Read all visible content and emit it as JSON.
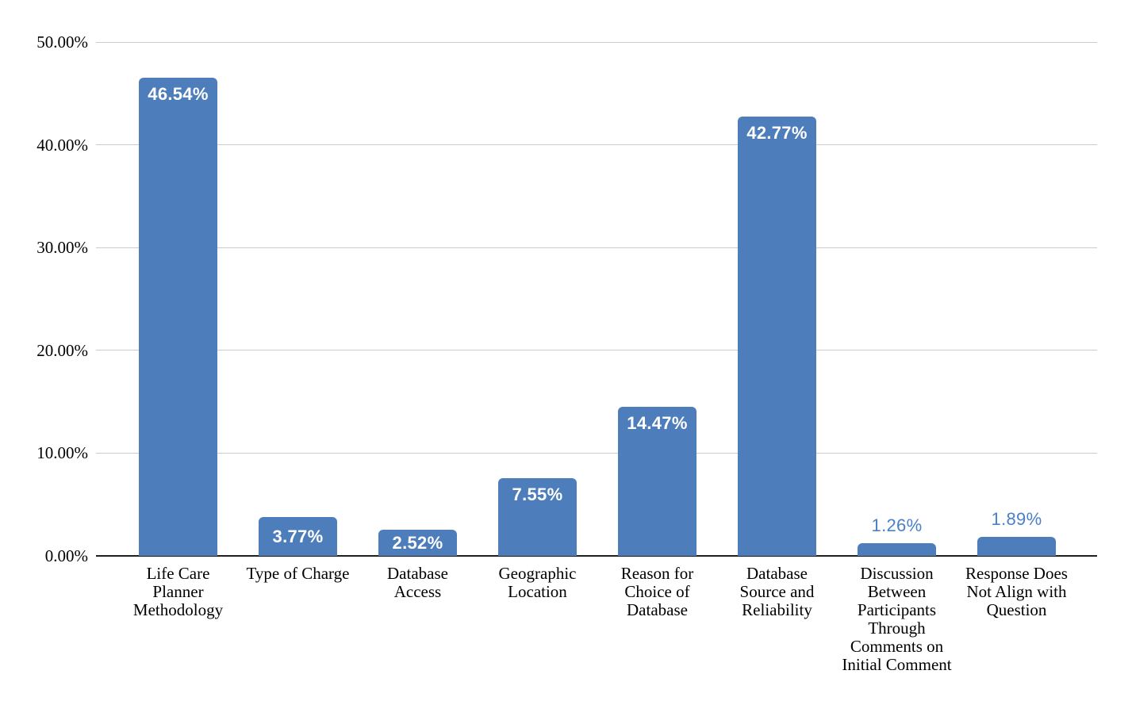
{
  "chart_data": {
    "type": "bar",
    "title": "",
    "xlabel": "",
    "ylabel": "",
    "categories": [
      "Life Care\nPlanner\nMethodology",
      "Type of Charge",
      "Database\nAccess",
      "Geographic\nLocation",
      "Reason for\nChoice of\nDatabase",
      "Database\nSource and\nReliability",
      "Discussion\nBetween\nParticipants\nThrough\nComments on\nInitial Comment",
      "Response Does\nNot Align with\nQuestion"
    ],
    "values": [
      46.54,
      3.77,
      2.52,
      7.55,
      14.47,
      42.77,
      1.26,
      1.89
    ],
    "value_labels": [
      "46.54%",
      "3.77%",
      "2.52%",
      "7.55%",
      "14.47%",
      "42.77%",
      "1.26%",
      "1.89%"
    ],
    "label_placement": [
      "inside",
      "inside",
      "inside",
      "inside",
      "inside",
      "inside",
      "outside",
      "outside"
    ],
    "ylim": [
      0,
      50
    ],
    "yticks": [
      "0.00%",
      "10.00%",
      "20.00%",
      "30.00%",
      "40.00%",
      "50.00%"
    ],
    "grid": true,
    "legend": "none",
    "colors": {
      "bar": "#4d7ebb",
      "inside_label": "#ffffff",
      "outside_label": "#4a80c6",
      "gridline": "#cccccc",
      "axis_line": "#1f1f1f",
      "tick_text": "#000000",
      "background": "#ffffff"
    }
  }
}
